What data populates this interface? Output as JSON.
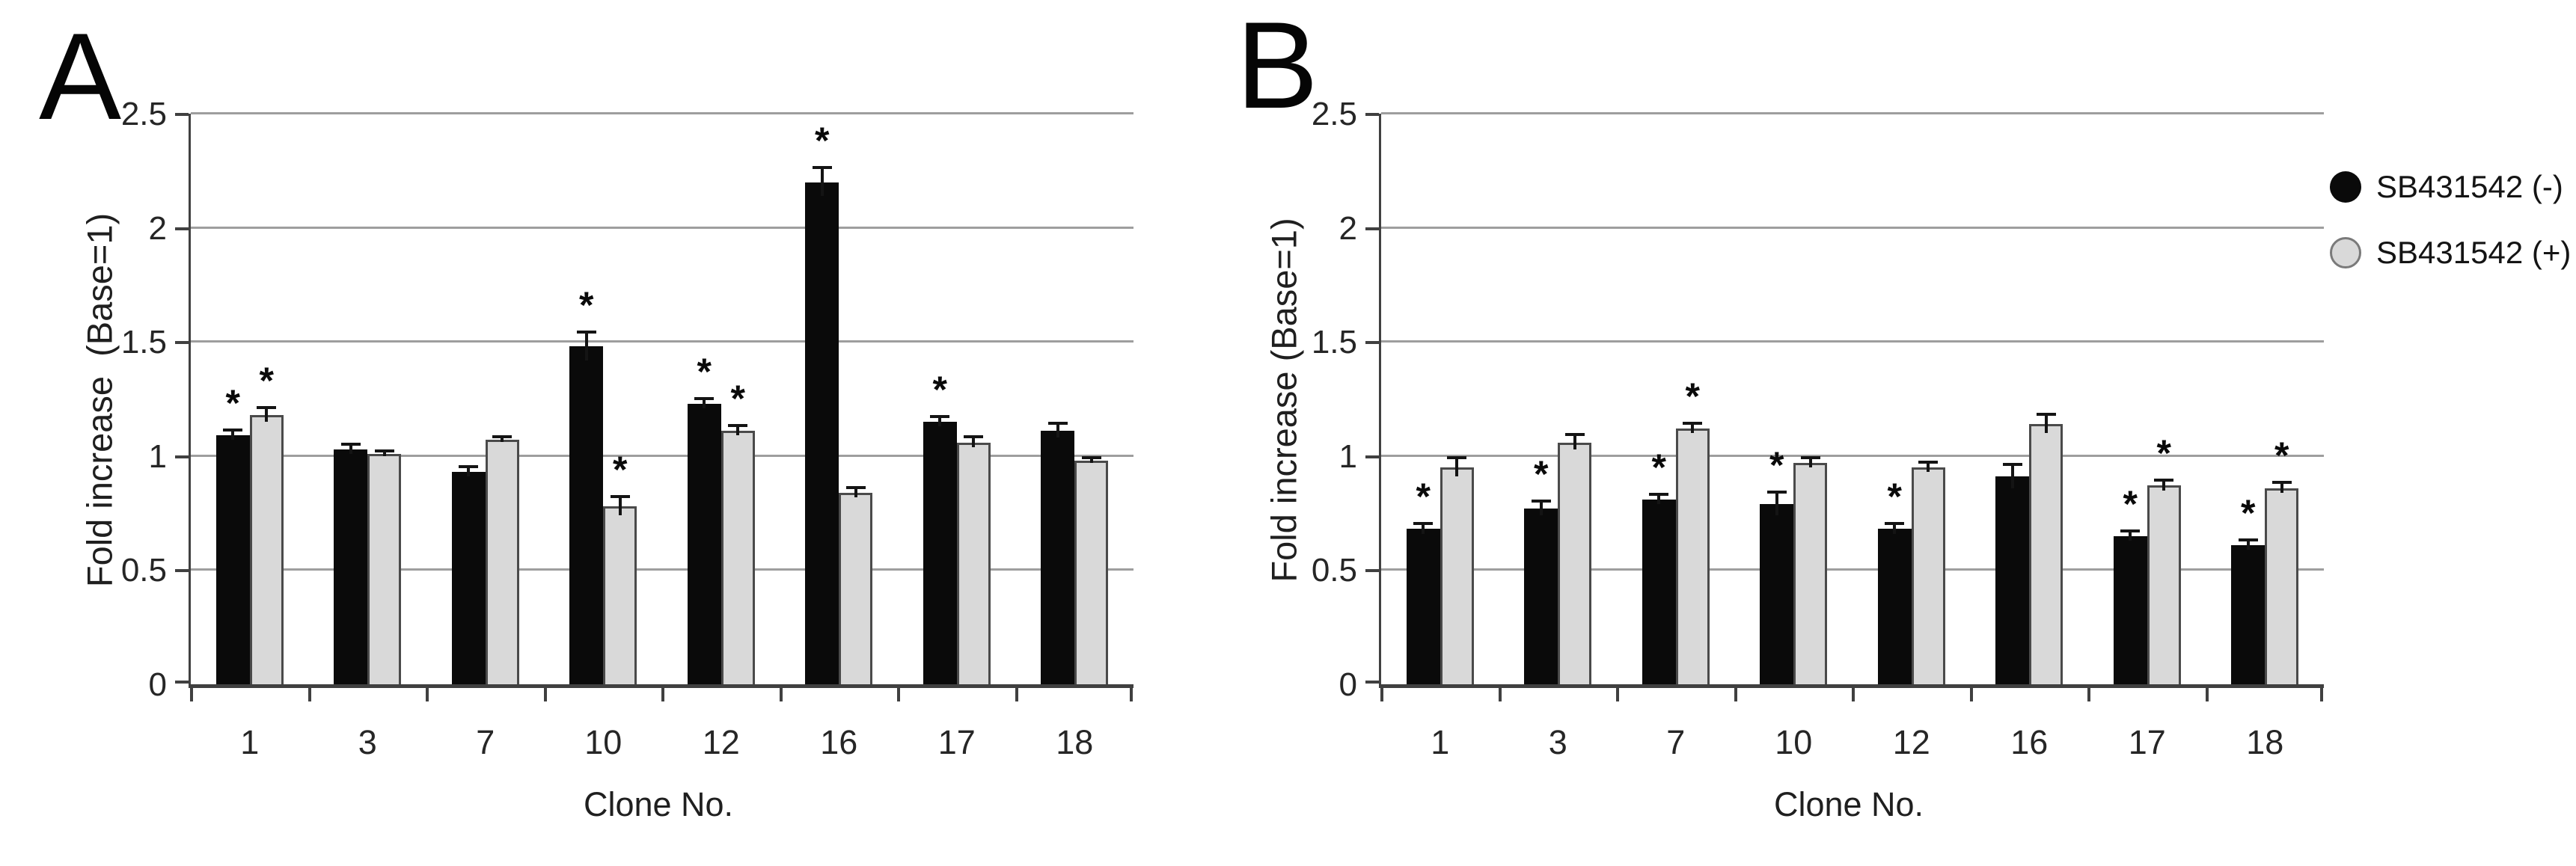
{
  "figure": {
    "significance_marker": "*",
    "colors": {
      "series_negative": "#0a0a0a",
      "series_positive_fill": "#d9d9d9",
      "series_positive_border": "#4a4a4a",
      "gridline": "#9e9e9e",
      "axis": "#404040",
      "text": "#1f1f1f"
    },
    "legend": [
      {
        "label": "SB431542 (-)",
        "marker": "black-filled-circle"
      },
      {
        "label": "SB431542 (+)",
        "marker": "gray-filled-circle"
      }
    ]
  },
  "chart_data": [
    {
      "type": "bar",
      "panel_letter": "A",
      "title": "",
      "xlabel": "Clone No.",
      "ylabel": "Fold increase  (Base=1)",
      "categories": [
        "1",
        "3",
        "7",
        "10",
        "12",
        "16",
        "17",
        "18"
      ],
      "ylim": [
        0,
        2.5
      ],
      "yticks": [
        0,
        0.5,
        1,
        1.5,
        2,
        2.5
      ],
      "ytick_labels": [
        "0",
        "0.5",
        "1",
        "1.5",
        "2",
        "2.5"
      ],
      "grid": true,
      "legend_position": "outside-right-shared",
      "series": [
        {
          "name": "SB431542 (-)",
          "color": "#0a0a0a",
          "values": [
            1.09,
            1.03,
            0.93,
            1.48,
            1.23,
            2.2,
            1.15,
            1.11
          ],
          "errors": [
            0.02,
            0.02,
            0.02,
            0.06,
            0.02,
            0.06,
            0.02,
            0.03
          ],
          "significant": [
            true,
            false,
            false,
            true,
            true,
            true,
            true,
            false
          ]
        },
        {
          "name": "SB431542 (+)",
          "color": "#d9d9d9",
          "values": [
            1.18,
            1.01,
            1.07,
            0.78,
            1.11,
            0.84,
            1.06,
            0.98
          ],
          "errors": [
            0.03,
            0.01,
            0.01,
            0.04,
            0.02,
            0.02,
            0.02,
            0.01
          ],
          "significant": [
            true,
            false,
            false,
            true,
            true,
            false,
            false,
            false
          ]
        }
      ]
    },
    {
      "type": "bar",
      "panel_letter": "B",
      "title": "",
      "xlabel": "Clone No.",
      "ylabel": "Fold increase (Base=1)",
      "categories": [
        "1",
        "3",
        "7",
        "10",
        "12",
        "16",
        "17",
        "18"
      ],
      "ylim": [
        0,
        2.5
      ],
      "yticks": [
        0,
        0.5,
        1,
        1.5,
        2,
        2.5
      ],
      "ytick_labels": [
        "0",
        "0.5",
        "1",
        "1.5",
        "2",
        "2.5"
      ],
      "grid": true,
      "legend_position": "outside-right-shared",
      "series": [
        {
          "name": "SB431542 (-)",
          "color": "#0a0a0a",
          "values": [
            0.68,
            0.77,
            0.81,
            0.79,
            0.68,
            0.91,
            0.65,
            0.61
          ],
          "errors": [
            0.02,
            0.03,
            0.02,
            0.05,
            0.02,
            0.05,
            0.02,
            0.02
          ],
          "significant": [
            true,
            true,
            true,
            true,
            true,
            false,
            true,
            true
          ]
        },
        {
          "name": "SB431542 (+)",
          "color": "#d9d9d9",
          "values": [
            0.95,
            1.06,
            1.12,
            0.97,
            0.95,
            1.14,
            0.87,
            0.86
          ],
          "errors": [
            0.04,
            0.03,
            0.02,
            0.02,
            0.02,
            0.04,
            0.02,
            0.02
          ],
          "significant": [
            false,
            false,
            true,
            false,
            false,
            false,
            true,
            true
          ]
        }
      ]
    }
  ]
}
